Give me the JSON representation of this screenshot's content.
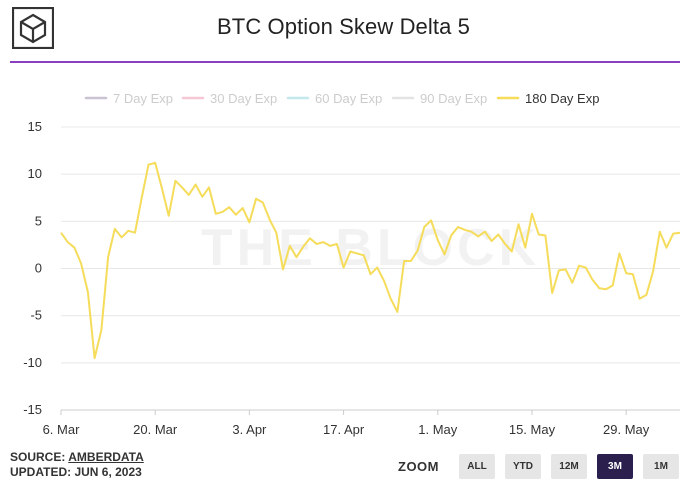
{
  "header": {
    "title": "BTC Option Skew Delta 5"
  },
  "footer": {
    "source_label": "SOURCE:",
    "source_name": "AMBERDATA",
    "updated": "UPDATED: JUN 6, 2023"
  },
  "zoom": {
    "label": "ZOOM",
    "buttons": [
      "ALL",
      "YTD",
      "12M",
      "3M",
      "1M"
    ],
    "active": "3M"
  },
  "watermark": "THE BLOCK",
  "colors": {
    "accent_divider": "#8a3fc0",
    "line_180": "#f5dc5a",
    "zoom_active": "#2b1f4e"
  },
  "chart_data": {
    "type": "line",
    "title": "BTC Option Skew Delta 5",
    "ylim": [
      -15,
      15
    ],
    "yticks": [
      15,
      10,
      5,
      0,
      -5,
      -10,
      -15
    ],
    "xlim": [
      "2023-03-06",
      "2023-06-06"
    ],
    "xtick_labels": [
      "6. Mar",
      "20. Mar",
      "3. Apr",
      "17. Apr",
      "1. May",
      "15. May",
      "29. May"
    ],
    "legend_position": "top-center",
    "grid": true,
    "series": [
      {
        "name": "7 Day Exp",
        "color": "#c9c2d3",
        "visible": false,
        "values": []
      },
      {
        "name": "30 Day Exp",
        "color": "#f4c7d3",
        "visible": false,
        "values": []
      },
      {
        "name": "60 Day Exp",
        "color": "#c5e8ec",
        "visible": false,
        "values": []
      },
      {
        "name": "90 Day Exp",
        "color": "#e3e3e3",
        "visible": false,
        "values": []
      },
      {
        "name": "180 Day Exp",
        "color": "#f5dc5a",
        "visible": true,
        "x": [
          "2023-03-06",
          "2023-03-07",
          "2023-03-08",
          "2023-03-09",
          "2023-03-10",
          "2023-03-11",
          "2023-03-12",
          "2023-03-13",
          "2023-03-14",
          "2023-03-15",
          "2023-03-16",
          "2023-03-17",
          "2023-03-18",
          "2023-03-19",
          "2023-03-20",
          "2023-03-21",
          "2023-03-22",
          "2023-03-23",
          "2023-03-24",
          "2023-03-25",
          "2023-03-26",
          "2023-03-27",
          "2023-03-28",
          "2023-03-29",
          "2023-03-30",
          "2023-03-31",
          "2023-04-01",
          "2023-04-02",
          "2023-04-03",
          "2023-04-04",
          "2023-04-05",
          "2023-04-06",
          "2023-04-07",
          "2023-04-08",
          "2023-04-09",
          "2023-04-10",
          "2023-04-11",
          "2023-04-12",
          "2023-04-13",
          "2023-04-14",
          "2023-04-15",
          "2023-04-16",
          "2023-04-17",
          "2023-04-18",
          "2023-04-19",
          "2023-04-20",
          "2023-04-21",
          "2023-04-22",
          "2023-04-23",
          "2023-04-24",
          "2023-04-25",
          "2023-04-26",
          "2023-04-27",
          "2023-04-28",
          "2023-04-29",
          "2023-04-30",
          "2023-05-01",
          "2023-05-02",
          "2023-05-03",
          "2023-05-04",
          "2023-05-05",
          "2023-05-06",
          "2023-05-07",
          "2023-05-08",
          "2023-05-09",
          "2023-05-10",
          "2023-05-11",
          "2023-05-12",
          "2023-05-13",
          "2023-05-14",
          "2023-05-15",
          "2023-05-16",
          "2023-05-17",
          "2023-05-18",
          "2023-05-19",
          "2023-05-20",
          "2023-05-21",
          "2023-05-22",
          "2023-05-23",
          "2023-05-24",
          "2023-05-25",
          "2023-05-26",
          "2023-05-27",
          "2023-05-28",
          "2023-05-29",
          "2023-05-30",
          "2023-05-31",
          "2023-06-01",
          "2023-06-02",
          "2023-06-03",
          "2023-06-04",
          "2023-06-05",
          "2023-06-06"
        ],
        "values": [
          3.8,
          2.8,
          2.2,
          0.5,
          -2.5,
          -9.5,
          -6.5,
          1.2,
          4.2,
          3.3,
          4.0,
          3.8,
          7.5,
          11.0,
          11.2,
          8.5,
          5.6,
          9.3,
          8.6,
          7.8,
          8.9,
          7.6,
          8.6,
          5.8,
          6.0,
          6.5,
          5.7,
          6.4,
          4.9,
          7.4,
          7.0,
          5.2,
          3.8,
          -0.1,
          2.4,
          1.2,
          2.3,
          3.2,
          2.6,
          2.8,
          2.4,
          2.6,
          0.1,
          1.8,
          1.6,
          1.4,
          -0.6,
          0.1,
          -1.3,
          -3.2,
          -4.6,
          0.8,
          0.8,
          1.9,
          4.4,
          5.1,
          3.0,
          1.5,
          3.5,
          4.4,
          4.1,
          3.9,
          3.4,
          3.9,
          2.9,
          3.6,
          2.6,
          1.8,
          4.7,
          2.2,
          5.8,
          3.6,
          3.5,
          -2.6,
          -0.2,
          -0.1,
          -1.5,
          0.3,
          0.1,
          -1.2,
          -2.1,
          -2.2,
          -1.8,
          1.6,
          -0.5,
          -0.6,
          -3.2,
          -2.8,
          -0.3,
          3.9,
          2.2,
          3.7,
          3.8
        ]
      }
    ]
  }
}
